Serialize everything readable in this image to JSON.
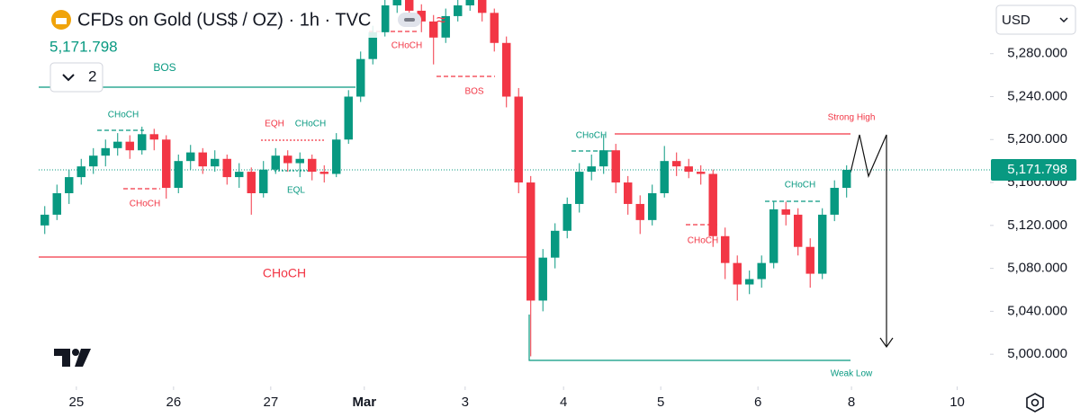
{
  "chart_data": {
    "type": "candlestick",
    "title": "CFDs on Gold (US$ / OZ) · 1h · TVC",
    "currency": "USD",
    "indicator_count": "2",
    "last_price": {
      "value": 5171.798,
      "label": "5,171.798"
    },
    "up_color": "#089981",
    "down_color": "#f23645",
    "ylim": [
      4970,
      5330
    ],
    "yticks": [
      {
        "value": 5000,
        "label": "5,000.000"
      },
      {
        "value": 5040,
        "label": "5,040.000"
      },
      {
        "value": 5080,
        "label": "5,080.000"
      },
      {
        "value": 5120,
        "label": "5,120.000"
      },
      {
        "value": 5160,
        "label": "5,160.000"
      },
      {
        "value": 5200,
        "label": "5,200.000"
      },
      {
        "value": 5240,
        "label": "5,240.000"
      },
      {
        "value": 5280,
        "label": "5,280.000"
      }
    ],
    "xlim": [
      -0.5,
      77.8
    ],
    "xticks": [
      {
        "value": 2.6,
        "label": "25"
      },
      {
        "value": 10.6,
        "label": "26"
      },
      {
        "value": 18.6,
        "label": "27"
      },
      {
        "value": 26.3,
        "label": "Mar"
      },
      {
        "value": 34.6,
        "label": "3"
      },
      {
        "value": 42.7,
        "label": "4"
      },
      {
        "value": 50.7,
        "label": "5"
      },
      {
        "value": 58.7,
        "label": "6"
      },
      {
        "value": 66.4,
        "label": "8"
      },
      {
        "value": 75.1,
        "label": "10"
      }
    ],
    "ohlc": [
      [
        5120,
        5138,
        5112,
        5130
      ],
      [
        5130,
        5158,
        5125,
        5150
      ],
      [
        5150,
        5172,
        5140,
        5165
      ],
      [
        5165,
        5182,
        5158,
        5175
      ],
      [
        5175,
        5192,
        5168,
        5185
      ],
      [
        5185,
        5200,
        5175,
        5192
      ],
      [
        5192,
        5206,
        5185,
        5198
      ],
      [
        5198,
        5204,
        5182,
        5190
      ],
      [
        5190,
        5212,
        5186,
        5205
      ],
      [
        5205,
        5210,
        5190,
        5200
      ],
      [
        5200,
        5204,
        5145,
        5155
      ],
      [
        5155,
        5186,
        5150,
        5180
      ],
      [
        5180,
        5195,
        5172,
        5188
      ],
      [
        5188,
        5192,
        5168,
        5175
      ],
      [
        5175,
        5190,
        5170,
        5182
      ],
      [
        5182,
        5186,
        5158,
        5165
      ],
      [
        5165,
        5178,
        5155,
        5170
      ],
      [
        5170,
        5174,
        5130,
        5150
      ],
      [
        5150,
        5180,
        5146,
        5172
      ],
      [
        5172,
        5192,
        5168,
        5185
      ],
      [
        5185,
        5190,
        5170,
        5178
      ],
      [
        5178,
        5188,
        5165,
        5182
      ],
      [
        5182,
        5186,
        5162,
        5170
      ],
      [
        5170,
        5176,
        5160,
        5168
      ],
      [
        5168,
        5206,
        5165,
        5200
      ],
      [
        5200,
        5246,
        5196,
        5240
      ],
      [
        5240,
        5282,
        5235,
        5275
      ],
      [
        5275,
        5306,
        5270,
        5300
      ],
      [
        5300,
        5332,
        5296,
        5325
      ],
      [
        5325,
        5340,
        5318,
        5330
      ],
      [
        5330,
        5336,
        5312,
        5320
      ],
      [
        5320,
        5326,
        5300,
        5310
      ],
      [
        5310,
        5316,
        5270,
        5295
      ],
      [
        5295,
        5322,
        5290,
        5315
      ],
      [
        5315,
        5334,
        5310,
        5325
      ],
      [
        5325,
        5340,
        5320,
        5330
      ],
      [
        5330,
        5334,
        5310,
        5318
      ],
      [
        5318,
        5322,
        5282,
        5290
      ],
      [
        5290,
        5296,
        5230,
        5240
      ],
      [
        5240,
        5248,
        5150,
        5160
      ],
      [
        5160,
        5166,
        4998,
        5050
      ],
      [
        5050,
        5098,
        5040,
        5090
      ],
      [
        5090,
        5122,
        5080,
        5115
      ],
      [
        5115,
        5146,
        5108,
        5140
      ],
      [
        5140,
        5178,
        5132,
        5170
      ],
      [
        5170,
        5186,
        5162,
        5175
      ],
      [
        5175,
        5204,
        5168,
        5190
      ],
      [
        5190,
        5196,
        5150,
        5160
      ],
      [
        5160,
        5166,
        5130,
        5140
      ],
      [
        5140,
        5148,
        5112,
        5125
      ],
      [
        5125,
        5158,
        5120,
        5150
      ],
      [
        5150,
        5194,
        5146,
        5180
      ],
      [
        5180,
        5188,
        5166,
        5175
      ],
      [
        5175,
        5182,
        5164,
        5170
      ],
      [
        5170,
        5176,
        5158,
        5168
      ],
      [
        5168,
        5172,
        5100,
        5110
      ],
      [
        5110,
        5118,
        5070,
        5085
      ],
      [
        5085,
        5092,
        5050,
        5065
      ],
      [
        5065,
        5078,
        5056,
        5070
      ],
      [
        5070,
        5092,
        5062,
        5085
      ],
      [
        5085,
        5142,
        5080,
        5135
      ],
      [
        5135,
        5142,
        5120,
        5130
      ],
      [
        5130,
        5136,
        5092,
        5100
      ],
      [
        5100,
        5108,
        5062,
        5075
      ],
      [
        5075,
        5136,
        5070,
        5130
      ],
      [
        5130,
        5162,
        5124,
        5155
      ],
      [
        5155,
        5176,
        5146,
        5171.798
      ]
    ],
    "annotations": [
      "BOS",
      "CHoCH",
      "CHoCH",
      "EQH",
      "CHoCH",
      "EQL",
      "CHoCH",
      "BOS",
      "CHoCH",
      "CHoCH",
      "Strong High",
      "CHoCH",
      "CHoCH",
      "Weak Low"
    ]
  }
}
